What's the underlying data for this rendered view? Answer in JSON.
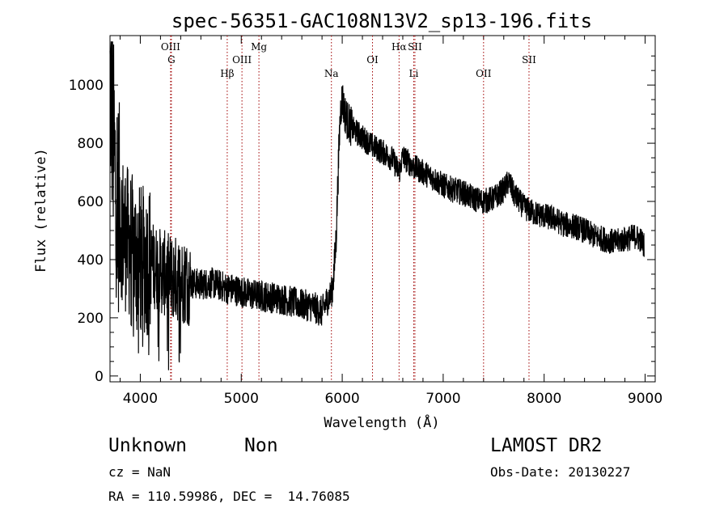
{
  "chart_data": {
    "type": "line",
    "title": "spec-56351-GAC108N13V2_sp13-196.fits",
    "xlabel": "Wavelength (Å)",
    "ylabel": "Flux (relative)",
    "xlim": [
      3700,
      9100
    ],
    "ylim": [
      -20,
      1170
    ],
    "xticks": [
      4000,
      5000,
      6000,
      7000,
      8000,
      9000
    ],
    "yticks": [
      0,
      200,
      400,
      600,
      800,
      1000
    ],
    "grid": false,
    "series": [
      {
        "x": [
          3700,
          3720,
          3740,
          3760,
          3780,
          3800,
          3850,
          3900,
          3950,
          4000,
          4100,
          4200,
          4300,
          4400,
          4500,
          4600,
          4700,
          4800,
          4861,
          4900,
          5000,
          5100,
          5200,
          5300,
          5400,
          5500,
          5600,
          5700,
          5800,
          5850,
          5890,
          5900,
          5920,
          5940,
          5960,
          5980,
          6000,
          6020,
          6050,
          6100,
          6200,
          6300,
          6400,
          6500,
          6563,
          6600,
          6700,
          6800,
          6900,
          7000,
          7100,
          7200,
          7300,
          7400,
          7500,
          7600,
          7650,
          7700,
          7800,
          7900,
          8000,
          8100,
          8200,
          8300,
          8400,
          8500,
          8600,
          8700,
          8800,
          8900,
          8950,
          8990
        ],
        "y": [
          1000,
          900,
          750,
          650,
          600,
          540,
          480,
          450,
          420,
          400,
          390,
          360,
          340,
          330,
          320,
          315,
          320,
          310,
          300,
          300,
          290,
          280,
          275,
          270,
          265,
          255,
          245,
          240,
          220,
          260,
          280,
          300,
          360,
          480,
          700,
          900,
          960,
          910,
          880,
          850,
          820,
          790,
          770,
          745,
          700,
          755,
          720,
          700,
          680,
          655,
          640,
          630,
          610,
          600,
          610,
          640,
          670,
          625,
          580,
          560,
          550,
          540,
          520,
          515,
          500,
          480,
          470,
          460,
          470,
          480,
          470,
          450
        ]
      }
    ],
    "lines": [
      {
        "label": "OIII",
        "x": 4300,
        "row": 1
      },
      {
        "label": "G",
        "x": 4308,
        "row": 2
      },
      {
        "label": "Hβ",
        "x": 4861,
        "row": 3
      },
      {
        "label": "OIII",
        "x": 5007,
        "row": 2
      },
      {
        "label": "Mg",
        "x": 5175,
        "row": 1
      },
      {
        "label": "Na",
        "x": 5893,
        "row": 3
      },
      {
        "label": "OI",
        "x": 6300,
        "row": 2
      },
      {
        "label": "Hα",
        "x": 6563,
        "row": 1
      },
      {
        "label": "SII",
        "x": 6720,
        "row": 1
      },
      {
        "label": "Li",
        "x": 6708,
        "row": 3
      },
      {
        "label": "OII",
        "x": 7400,
        "row": 3
      },
      {
        "label": "SII",
        "x": 7850,
        "row": 2
      }
    ]
  },
  "info": {
    "object_class": "Unknown",
    "subclass": "Non",
    "survey": "LAMOST DR2",
    "cz": "cz = NaN",
    "obs_date": "Obs-Date: 20130227",
    "coords": "RA = 110.59986, DEC =  14.76085"
  }
}
